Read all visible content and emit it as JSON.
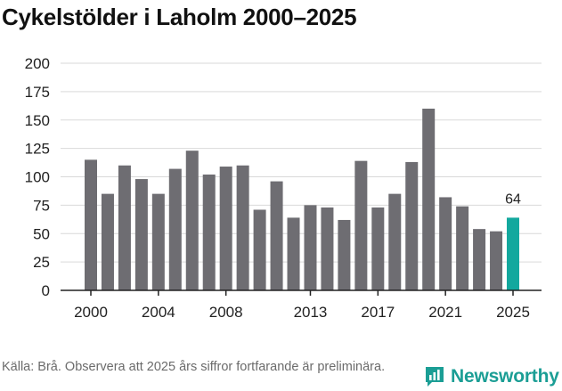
{
  "title": "Cykelstölder i Laholm 2000–2025",
  "source": "Källa: Brå. Observera att 2025 års siffror fortfarande är preliminära.",
  "brand": {
    "name": "Newsworthy",
    "icon": "newsworthy-logo-icon"
  },
  "colors": {
    "bar": "#6e6d72",
    "highlight": "#13a89e",
    "grid": "#d9d9d9",
    "axis": "#222222"
  },
  "chart_data": {
    "type": "bar",
    "title": "Cykelstölder i Laholm 2000–2025",
    "xlabel": "",
    "ylabel": "",
    "ylim": [
      0,
      200
    ],
    "yticks": [
      0,
      25,
      50,
      75,
      100,
      125,
      150,
      175,
      200
    ],
    "x": [
      2000,
      2001,
      2002,
      2003,
      2004,
      2005,
      2006,
      2007,
      2008,
      2009,
      2010,
      2011,
      2012,
      2013,
      2014,
      2015,
      2016,
      2017,
      2018,
      2019,
      2020,
      2021,
      2022,
      2023,
      2024,
      2025
    ],
    "xticks": [
      2000,
      2004,
      2008,
      2013,
      2017,
      2021,
      2025
    ],
    "values": [
      115,
      85,
      110,
      98,
      85,
      107,
      123,
      102,
      109,
      110,
      71,
      96,
      64,
      75,
      73,
      62,
      114,
      73,
      85,
      113,
      160,
      82,
      74,
      54,
      52,
      64
    ],
    "highlight_index": 25,
    "highlight_label": "64"
  }
}
